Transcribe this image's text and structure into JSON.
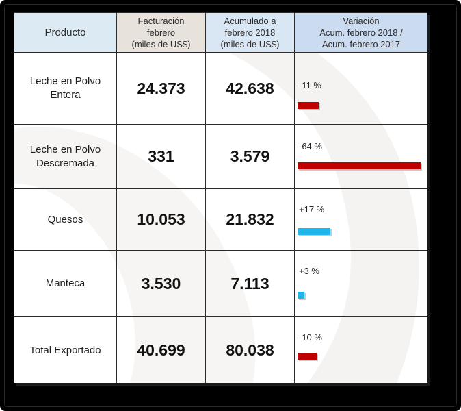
{
  "headers": {
    "producto": "Producto",
    "facturacion": [
      "Facturación",
      "febrero",
      "(miles de US$)"
    ],
    "acumulado": [
      "Acumulado a",
      "febrero 2018",
      "(miles de US$)"
    ],
    "variacion": [
      "Variación",
      "Acum. febrero 2018 /",
      "Acum. febrero 2017"
    ]
  },
  "rows": [
    {
      "producto": [
        "Leche en Polvo",
        "Entera"
      ],
      "facturacion": "24.373",
      "acumulado": "42.638",
      "variacion": "-11 %",
      "variacion_value": -11,
      "direction": "neg"
    },
    {
      "producto": [
        "Leche en Polvo",
        "Descremada"
      ],
      "facturacion": "331",
      "acumulado": "3.579",
      "variacion": "-64 %",
      "variacion_value": -64,
      "direction": "neg"
    },
    {
      "producto": [
        "Quesos"
      ],
      "facturacion": "10.053",
      "acumulado": "21.832",
      "variacion": "+17 %",
      "variacion_value": 17,
      "direction": "pos"
    },
    {
      "producto": [
        "Manteca"
      ],
      "facturacion": "3.530",
      "acumulado": "7.113",
      "variacion": "+3 %",
      "variacion_value": 3,
      "direction": "pos"
    },
    {
      "producto": [
        "Total Exportado"
      ],
      "facturacion": "40.699",
      "acumulado": "80.038",
      "variacion": "-10 %",
      "variacion_value": -10,
      "direction": "neg"
    }
  ],
  "colors": {
    "negative": "#c00000",
    "positive": "#20b5e8"
  }
}
